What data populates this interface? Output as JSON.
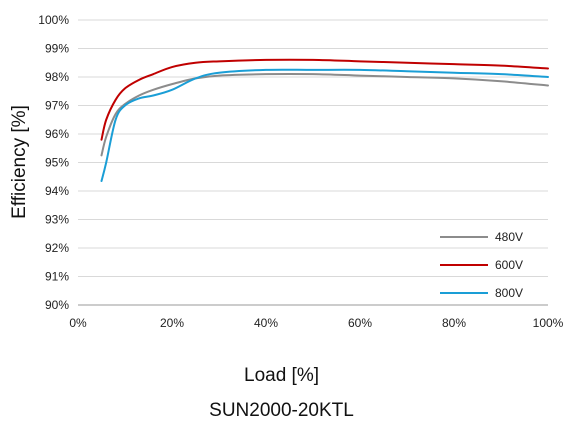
{
  "chart_data": {
    "type": "line",
    "title": "SUN2000-20KTL",
    "xlabel": "Load [%]",
    "ylabel": "Efficiency [%]",
    "x_unit": "%",
    "xlim": [
      0,
      100
    ],
    "ylim": [
      90,
      100
    ],
    "x_ticks": [
      "0%",
      "20%",
      "40%",
      "60%",
      "80%",
      "100%"
    ],
    "y_ticks": [
      "90%",
      "91%",
      "92%",
      "93%",
      "94%",
      "95%",
      "96%",
      "97%",
      "98%",
      "99%",
      "100%"
    ],
    "grid": "horizontal",
    "legend_position": "bottom-right",
    "series": [
      {
        "name": "480V",
        "color": "#8c8c8c",
        "x": [
          5,
          6,
          8,
          10,
          13,
          16,
          20,
          25,
          30,
          40,
          50,
          60,
          70,
          80,
          90,
          100
        ],
        "y": [
          95.25,
          95.9,
          96.7,
          97.05,
          97.35,
          97.55,
          97.75,
          97.95,
          98.05,
          98.1,
          98.1,
          98.05,
          98.0,
          97.95,
          97.85,
          97.7
        ]
      },
      {
        "name": "600V",
        "color": "#c00000",
        "x": [
          5,
          6,
          8,
          10,
          13,
          16,
          20,
          25,
          30,
          40,
          50,
          60,
          70,
          80,
          90,
          100
        ],
        "y": [
          95.8,
          96.5,
          97.2,
          97.6,
          97.9,
          98.1,
          98.35,
          98.5,
          98.55,
          98.6,
          98.6,
          98.55,
          98.5,
          98.45,
          98.4,
          98.3
        ]
      },
      {
        "name": "800V",
        "color": "#1a9ed6",
        "x": [
          5,
          6,
          8,
          10,
          13,
          16,
          20,
          25,
          30,
          40,
          50,
          60,
          70,
          80,
          90,
          100
        ],
        "y": [
          94.35,
          95.0,
          96.5,
          97.0,
          97.25,
          97.35,
          97.55,
          97.95,
          98.15,
          98.25,
          98.25,
          98.25,
          98.2,
          98.15,
          98.1,
          98.0
        ]
      }
    ]
  }
}
